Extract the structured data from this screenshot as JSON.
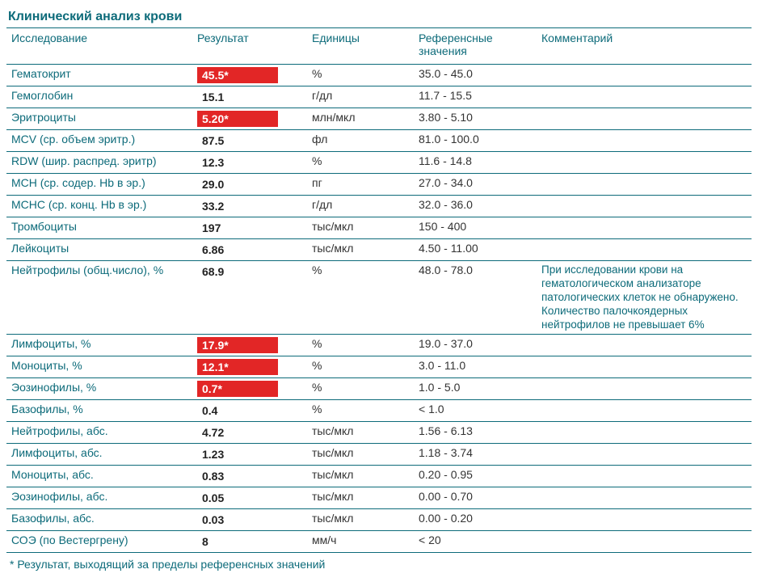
{
  "title": "Клинический анализ крови",
  "headers": {
    "study": "Исследование",
    "result": "Результат",
    "units": "Единицы",
    "ref": "Референсные значения",
    "comment": "Комментарий"
  },
  "rows": [
    {
      "study": "Гематокрит",
      "result": "45.5*",
      "flag": true,
      "units": "%",
      "ref": "35.0 - 45.0",
      "comment": ""
    },
    {
      "study": "Гемоглобин",
      "result": "15.1",
      "flag": false,
      "units": "г/дл",
      "ref": "11.7 - 15.5",
      "comment": ""
    },
    {
      "study": "Эритроциты",
      "result": "5.20*",
      "flag": true,
      "units": "млн/мкл",
      "ref": "3.80 - 5.10",
      "comment": ""
    },
    {
      "study": "MCV (ср. объем эритр.)",
      "result": "87.5",
      "flag": false,
      "units": "фл",
      "ref": "81.0 - 100.0",
      "comment": ""
    },
    {
      "study": "RDW (шир. распред. эритр)",
      "result": "12.3",
      "flag": false,
      "units": "%",
      "ref": "11.6 - 14.8",
      "comment": ""
    },
    {
      "study": "MCH (ср. содер. Hb в эр.)",
      "result": "29.0",
      "flag": false,
      "units": "пг",
      "ref": "27.0 - 34.0",
      "comment": ""
    },
    {
      "study": "MCHC (ср. конц. Hb в эр.)",
      "result": "33.2",
      "flag": false,
      "units": "г/дл",
      "ref": "32.0 - 36.0",
      "comment": ""
    },
    {
      "study": "Тромбоциты",
      "result": "197",
      "flag": false,
      "units": "тыс/мкл",
      "ref": "150 - 400",
      "comment": ""
    },
    {
      "study": "Лейкоциты",
      "result": "6.86",
      "flag": false,
      "units": "тыс/мкл",
      "ref": "4.50 - 11.00",
      "comment": ""
    },
    {
      "study": "Нейтрофилы (общ.число), %",
      "result": "68.9",
      "flag": false,
      "units": "%",
      "ref": "48.0 - 78.0",
      "comment": "При исследовании крови на гематологическом анализаторе патологических клеток не обнаружено. Количество палочкоядерных нейтрофилов не превышает 6%"
    },
    {
      "study": "Лимфоциты, %",
      "result": "17.9*",
      "flag": true,
      "units": "%",
      "ref": "19.0 - 37.0",
      "comment": ""
    },
    {
      "study": "Моноциты, %",
      "result": "12.1*",
      "flag": true,
      "units": "%",
      "ref": "3.0 - 11.0",
      "comment": ""
    },
    {
      "study": "Эозинофилы, %",
      "result": "0.7*",
      "flag": true,
      "units": "%",
      "ref": "1.0 - 5.0",
      "comment": ""
    },
    {
      "study": "Базофилы, %",
      "result": "0.4",
      "flag": false,
      "units": "%",
      "ref": "< 1.0",
      "comment": ""
    },
    {
      "study": "Нейтрофилы, абс.",
      "result": "4.72",
      "flag": false,
      "units": "тыс/мкл",
      "ref": "1.56 - 6.13",
      "comment": ""
    },
    {
      "study": "Лимфоциты, абс.",
      "result": "1.23",
      "flag": false,
      "units": "тыс/мкл",
      "ref": "1.18 - 3.74",
      "comment": ""
    },
    {
      "study": "Моноциты, абс.",
      "result": "0.83",
      "flag": false,
      "units": "тыс/мкл",
      "ref": "0.20 - 0.95",
      "comment": ""
    },
    {
      "study": "Эозинофилы, абс.",
      "result": "0.05",
      "flag": false,
      "units": "тыс/мкл",
      "ref": "0.00 - 0.70",
      "comment": ""
    },
    {
      "study": "Базофилы, абс.",
      "result": "0.03",
      "flag": false,
      "units": "тыс/мкл",
      "ref": "0.00 - 0.20",
      "comment": ""
    },
    {
      "study": "СОЭ (по Вестергрену)",
      "result": "8",
      "flag": false,
      "units": "мм/ч",
      "ref": "< 20",
      "comment": ""
    }
  ],
  "footnote": "* Результат, выходящий за пределы референсных значений",
  "colors": {
    "accent": "#0d6b7a",
    "flag_bg": "#e22626",
    "flag_text": "#ffffff",
    "text": "#333333",
    "background": "#ffffff"
  }
}
